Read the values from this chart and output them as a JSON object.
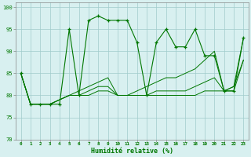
{
  "x": [
    0,
    1,
    2,
    3,
    4,
    5,
    6,
    7,
    8,
    9,
    10,
    11,
    12,
    13,
    14,
    15,
    16,
    17,
    18,
    19,
    20,
    21,
    22,
    23
  ],
  "line1": [
    85,
    78,
    78,
    78,
    78,
    95,
    80,
    97,
    98,
    97,
    97,
    97,
    92,
    80,
    92,
    95,
    91,
    91,
    95,
    89,
    89,
    81,
    81,
    93
  ],
  "line2": [
    85,
    78,
    78,
    78,
    79,
    80,
    80,
    80,
    81,
    81,
    80,
    80,
    80,
    80,
    80,
    80,
    80,
    80,
    80,
    81,
    81,
    81,
    81,
    88
  ],
  "line3": [
    85,
    78,
    78,
    78,
    79,
    80,
    80,
    81,
    82,
    82,
    80,
    80,
    80,
    80,
    81,
    81,
    81,
    81,
    82,
    83,
    84,
    81,
    82,
    88
  ],
  "line4": [
    85,
    78,
    78,
    78,
    79,
    80,
    81,
    82,
    83,
    84,
    80,
    80,
    81,
    82,
    83,
    84,
    84,
    85,
    86,
    88,
    90,
    81,
    82,
    93
  ],
  "bg_color": "#d8f0f0",
  "line_color": "#007700",
  "grid_color": "#a0cccc",
  "xlabel": "Humidité relative (%)",
  "ylim": [
    70,
    101
  ],
  "yticks": [
    70,
    75,
    80,
    85,
    90,
    95,
    100
  ],
  "xticks": [
    0,
    1,
    2,
    3,
    4,
    5,
    6,
    7,
    8,
    9,
    10,
    11,
    12,
    13,
    14,
    15,
    16,
    17,
    18,
    19,
    20,
    21,
    22,
    23
  ],
  "xlim": [
    -0.5,
    23.5
  ]
}
